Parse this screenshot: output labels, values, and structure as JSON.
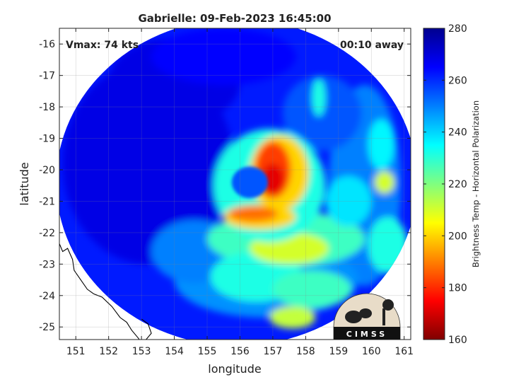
{
  "chart_data": {
    "type": "heatmap",
    "title": "Gabrielle: 09-Feb-2023 16:45:00",
    "xlabel": "longitude",
    "ylabel": "latitude",
    "xlim": [
      150.5,
      161.2
    ],
    "ylim": [
      -25.4,
      -15.5
    ],
    "xticks": [
      151,
      152,
      153,
      154,
      155,
      156,
      157,
      158,
      159,
      160,
      161
    ],
    "yticks": [
      -16,
      -17,
      -18,
      -19,
      -20,
      -21,
      -22,
      -23,
      -24,
      -25
    ],
    "grid": true,
    "annotations": {
      "vmax": "Vmax: 74 kts",
      "away": "00:10 away"
    },
    "colorbar": {
      "label": "Brightness Temp - Horizontal Polarization",
      "range": [
        160,
        280
      ],
      "ticks": [
        280,
        260,
        240,
        220,
        200,
        180,
        160
      ],
      "colormap": "jet"
    },
    "swath": {
      "center": [
        155.9,
        -20.4
      ],
      "radius_lon": 5.5,
      "radius_lat": 5.2
    },
    "features": [
      {
        "name": "eyewall",
        "center": [
          157.0,
          -20.5
        ],
        "min_value": 170
      },
      {
        "name": "eye",
        "center": [
          156.3,
          -20.4
        ],
        "value": 255
      },
      {
        "name": "southern rainband",
        "center": [
          157.5,
          -22.7
        ],
        "min_value": 205
      }
    ],
    "logo": "CIMSS"
  }
}
